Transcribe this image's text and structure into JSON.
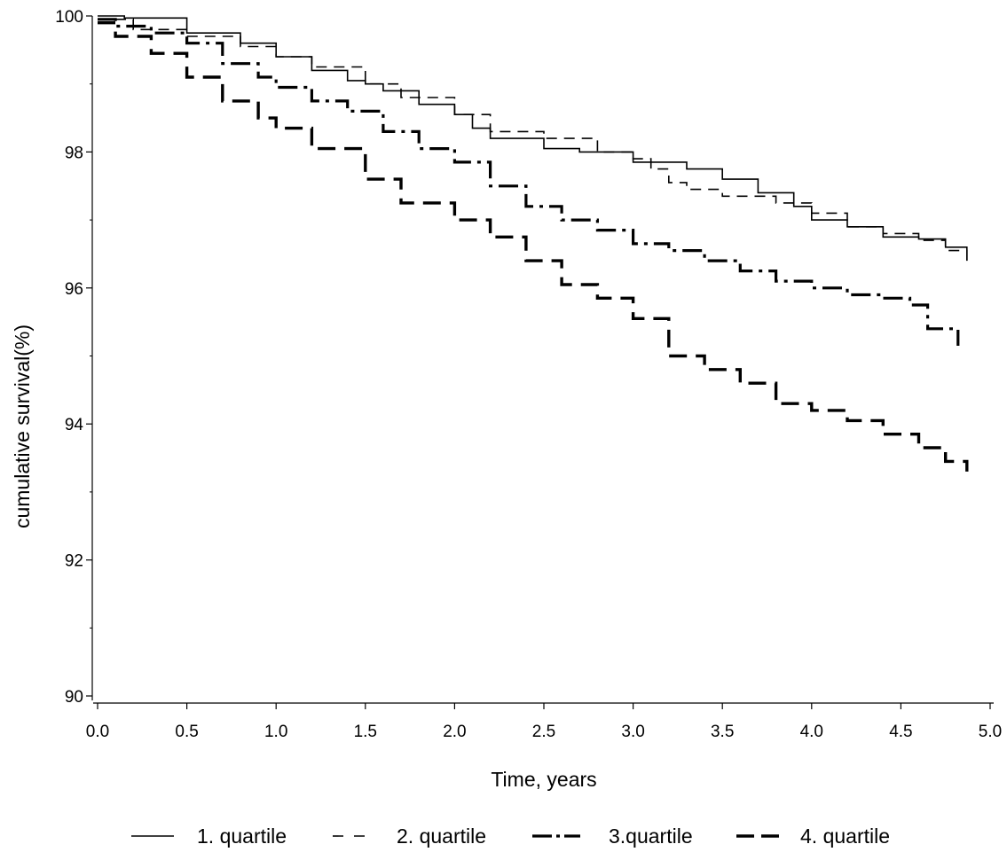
{
  "chart_data": {
    "type": "line",
    "title": "",
    "xlabel": "Time, years",
    "ylabel": "cumulative survival(%)",
    "xlim": [
      0,
      5
    ],
    "ylim": [
      90,
      100
    ],
    "x_ticks": [
      "0.0",
      "0.5",
      "1.0",
      "1.5",
      "2.0",
      "2.5",
      "3.0",
      "3.5",
      "4.0",
      "4.5",
      "5.0"
    ],
    "y_ticks": [
      "90",
      "92",
      "94",
      "96",
      "98",
      "100"
    ],
    "grid": false,
    "legend_position": "bottom",
    "series": [
      {
        "name": "1. quartile",
        "line_style": "solid-thin",
        "x": [
          0,
          0.15,
          0.5,
          0.8,
          1.0,
          1.2,
          1.4,
          1.5,
          1.6,
          1.8,
          2.0,
          2.1,
          2.2,
          2.5,
          2.7,
          3.0,
          3.3,
          3.5,
          3.7,
          3.9,
          4.0,
          4.2,
          4.4,
          4.6,
          4.75,
          4.87
        ],
        "values": [
          100,
          99.97,
          99.75,
          99.6,
          99.4,
          99.2,
          99.05,
          99.0,
          98.9,
          98.7,
          98.55,
          98.35,
          98.2,
          98.05,
          98.0,
          97.85,
          97.75,
          97.6,
          97.4,
          97.2,
          97.0,
          96.9,
          96.75,
          96.72,
          96.6,
          96.4
        ]
      },
      {
        "name": "2. quartile",
        "line_style": "dashed-thin",
        "x": [
          0,
          0.2,
          0.5,
          0.8,
          1.0,
          1.2,
          1.5,
          1.7,
          2.0,
          2.2,
          2.5,
          2.8,
          3.0,
          3.1,
          3.2,
          3.3,
          3.5,
          3.8,
          4.0,
          4.2,
          4.4,
          4.6,
          4.75,
          4.87
        ],
        "values": [
          99.95,
          99.8,
          99.7,
          99.55,
          99.4,
          99.25,
          99.0,
          98.8,
          98.55,
          98.3,
          98.2,
          98.0,
          97.9,
          97.75,
          97.55,
          97.45,
          97.35,
          97.25,
          97.1,
          96.9,
          96.8,
          96.7,
          96.55,
          96.3
        ]
      },
      {
        "name": "3.quartile",
        "line_style": "dash-dot-thick",
        "x": [
          0,
          0.1,
          0.3,
          0.5,
          0.7,
          0.9,
          1.0,
          1.2,
          1.4,
          1.6,
          1.8,
          2.0,
          2.2,
          2.4,
          2.6,
          2.8,
          3.0,
          3.2,
          3.4,
          3.6,
          3.8,
          4.0,
          4.2,
          4.4,
          4.55,
          4.65,
          4.82
        ],
        "values": [
          99.95,
          99.85,
          99.75,
          99.6,
          99.3,
          99.1,
          98.95,
          98.75,
          98.6,
          98.3,
          98.05,
          97.85,
          97.5,
          97.2,
          97.0,
          96.85,
          96.65,
          96.55,
          96.4,
          96.25,
          96.1,
          96.0,
          95.9,
          95.85,
          95.75,
          95.4,
          95.15
        ]
      },
      {
        "name": "4. quartile",
        "line_style": "dashed-thick",
        "x": [
          0,
          0.1,
          0.3,
          0.5,
          0.7,
          0.9,
          1.0,
          1.2,
          1.5,
          1.7,
          2.0,
          2.2,
          2.4,
          2.6,
          2.8,
          3.0,
          3.2,
          3.4,
          3.6,
          3.8,
          4.0,
          4.2,
          4.4,
          4.6,
          4.75,
          4.87
        ],
        "values": [
          99.9,
          99.7,
          99.45,
          99.1,
          98.75,
          98.5,
          98.35,
          98.05,
          97.6,
          97.25,
          97.0,
          96.75,
          96.4,
          96.05,
          95.85,
          95.55,
          95.0,
          94.8,
          94.6,
          94.3,
          94.2,
          94.05,
          93.85,
          93.65,
          93.45,
          93.3
        ]
      }
    ]
  }
}
